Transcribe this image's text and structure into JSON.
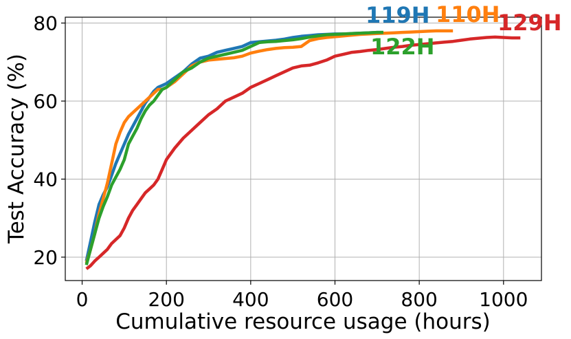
{
  "chart_data": {
    "type": "line",
    "title": "",
    "xlabel": "Cumulative resource usage (hours)",
    "ylabel": "Test Accuracy (%)",
    "xlim": [
      -40,
      1090
    ],
    "ylim": [
      14,
      81.5
    ],
    "xticks": [
      0,
      200,
      400,
      600,
      800,
      1000
    ],
    "yticks": [
      20,
      40,
      60,
      80
    ],
    "grid": true,
    "legend": "none",
    "series": [
      {
        "name": "119H",
        "color": "#1f77b4",
        "x": [
          10,
          20,
          30,
          40,
          50,
          60,
          70,
          80,
          90,
          100,
          110,
          120,
          130,
          140,
          150,
          160,
          170,
          180,
          190,
          200,
          220,
          240,
          260,
          280,
          300,
          320,
          340,
          360,
          380,
          400,
          420,
          440,
          460,
          480,
          500,
          520,
          540,
          560,
          580,
          600,
          620,
          640,
          660,
          680,
          700,
          715
        ],
        "y": [
          19,
          24,
          29,
          33.5,
          36,
          38,
          41,
          44,
          46.5,
          49,
          51.5,
          53.5,
          55.5,
          57.5,
          59.5,
          61,
          62.5,
          63.5,
          64,
          64.5,
          66,
          67.5,
          69.5,
          71,
          71.5,
          72.5,
          73,
          73.5,
          74,
          75,
          75.2,
          75.4,
          75.6,
          75.9,
          76.3,
          76.6,
          76.8,
          77,
          77.1,
          77.2,
          77.2,
          77.3,
          77.4,
          77.5,
          77.6,
          77.6
        ]
      },
      {
        "name": "110H",
        "color": "#ff7f0e",
        "x": [
          10,
          20,
          30,
          40,
          50,
          60,
          70,
          80,
          90,
          100,
          110,
          120,
          130,
          140,
          150,
          160,
          170,
          180,
          190,
          200,
          220,
          240,
          260,
          280,
          300,
          320,
          340,
          360,
          380,
          400,
          420,
          440,
          460,
          480,
          500,
          520,
          540,
          560,
          580,
          600,
          620,
          640,
          660,
          680,
          700,
          720,
          740,
          760,
          780,
          800,
          820,
          840,
          860,
          880
        ],
        "y": [
          18.5,
          22,
          26,
          31,
          35,
          39,
          44,
          49,
          52,
          54.5,
          56,
          57,
          58,
          59,
          60,
          61,
          62,
          63,
          63,
          63.5,
          65,
          67,
          69,
          70,
          70.5,
          70.7,
          70.9,
          71.1,
          71.5,
          72.3,
          72.8,
          73.2,
          73.5,
          73.7,
          73.8,
          74,
          75.5,
          76,
          76.3,
          76.5,
          76.7,
          76.9,
          77.1,
          77.2,
          77.3,
          77.4,
          77.5,
          77.6,
          77.7,
          77.8,
          77.9,
          78,
          78,
          78
        ]
      },
      {
        "name": "122H",
        "color": "#2ca02c",
        "x": [
          10,
          20,
          30,
          40,
          50,
          60,
          70,
          80,
          90,
          100,
          110,
          120,
          130,
          140,
          150,
          160,
          170,
          180,
          190,
          200,
          220,
          240,
          260,
          280,
          300,
          320,
          340,
          360,
          380,
          400,
          420,
          440,
          460,
          480,
          500,
          520,
          540,
          560,
          580,
          600,
          620,
          640,
          660,
          680,
          700,
          715
        ],
        "y": [
          18,
          22,
          26,
          30,
          33,
          35.5,
          38.5,
          40.5,
          42.5,
          45,
          49,
          51,
          53,
          55.5,
          57.5,
          59,
          60,
          61.5,
          63,
          63.5,
          65.5,
          67.5,
          68.5,
          70,
          71,
          71.5,
          72,
          72.5,
          73,
          74,
          75,
          75.2,
          75.3,
          75.5,
          75.7,
          76,
          76.4,
          76.7,
          77,
          77.1,
          77.2,
          77.3,
          77.4,
          77.5,
          77.6,
          77.6
        ]
      },
      {
        "name": "129H",
        "color": "#d62728",
        "x": [
          10,
          20,
          30,
          40,
          50,
          60,
          70,
          80,
          90,
          100,
          110,
          120,
          130,
          140,
          150,
          160,
          170,
          180,
          190,
          200,
          220,
          240,
          260,
          280,
          300,
          320,
          340,
          360,
          380,
          400,
          420,
          440,
          460,
          480,
          500,
          520,
          540,
          560,
          580,
          600,
          620,
          640,
          660,
          680,
          700,
          720,
          740,
          760,
          780,
          800,
          820,
          840,
          860,
          880,
          900,
          920,
          940,
          960,
          980,
          1000,
          1020,
          1040
        ],
        "y": [
          17,
          17.8,
          19,
          20,
          21,
          22,
          23.5,
          24.5,
          25.5,
          27.5,
          30,
          32,
          33.5,
          35,
          36.5,
          37.5,
          38.5,
          40,
          42.5,
          45,
          48,
          50.5,
          52.5,
          54.5,
          56.5,
          58,
          60,
          61,
          62,
          63.5,
          64.5,
          65.5,
          66.5,
          67.5,
          68.5,
          69,
          69.2,
          69.8,
          70.5,
          71.5,
          72,
          72.5,
          72.7,
          73,
          73.2,
          73.5,
          73.8,
          74,
          74.3,
          74.5,
          74.7,
          74.9,
          75.1,
          75.3,
          75.6,
          75.9,
          76.1,
          76.3,
          76.4,
          76.3,
          76.2,
          76.2
        ]
      }
    ]
  }
}
